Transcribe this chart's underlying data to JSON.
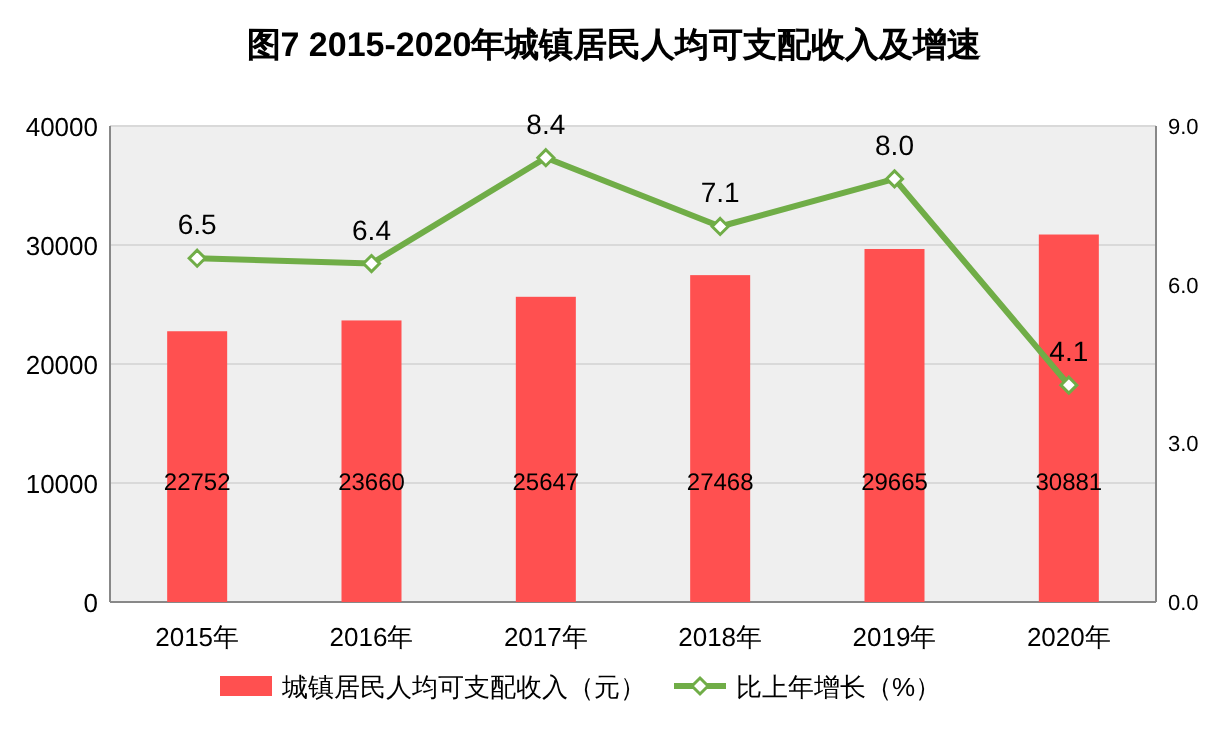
{
  "chart_data": {
    "type": "bar",
    "title": "图7  2015-2020年城镇居民人均可支配收入及增速",
    "categories": [
      "2015年",
      "2016年",
      "2017年",
      "2018年",
      "2019年",
      "2020年"
    ],
    "series": [
      {
        "name": "城镇居民人均可支配收入（元）",
        "color": "#ff5050",
        "values": [
          22752,
          23660,
          25647,
          27468,
          29665,
          30881
        ]
      },
      {
        "name": "比上年增长（%）",
        "type": "line",
        "axis": "y2",
        "color": "#70ad47",
        "marker": "diamond",
        "values": [
          6.5,
          6.4,
          8.4,
          7.1,
          8.0,
          4.1
        ],
        "value_labels": [
          "6.5",
          "6.4",
          "8.4",
          "7.1",
          "8.0",
          "4.1"
        ]
      }
    ],
    "ylim": [
      0,
      40000
    ],
    "yticks": [
      0,
      10000,
      20000,
      30000,
      40000
    ],
    "y2lim": [
      0,
      9
    ],
    "y2ticks": [
      {
        "value": 0,
        "label": "0.0"
      },
      {
        "value": 3,
        "label": "3.0"
      },
      {
        "value": 6,
        "label": "6.0"
      },
      {
        "value": 9,
        "label": "9.0"
      }
    ],
    "data_labels": true,
    "grid": "y",
    "legend": "bottom"
  }
}
